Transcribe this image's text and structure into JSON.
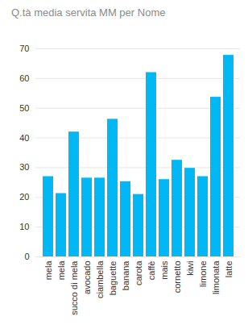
{
  "chart_data": {
    "type": "bar",
    "title": "Q.tà media servita MM per Nome",
    "categories": [
      "mela",
      "mela",
      "succo di mela",
      "avocado",
      "ciambella",
      "baguette",
      "banana",
      "carota",
      "caffè",
      "mais",
      "cornetto",
      "kiwi",
      "limone",
      "limonata",
      "latte"
    ],
    "values": [
      27,
      21.3,
      42,
      26.5,
      26.5,
      46.3,
      25.3,
      21,
      62,
      26,
      32.5,
      29.8,
      27,
      53.7,
      67.8
    ],
    "color": "#01b8f5",
    "ylim": [
      0,
      70
    ],
    "yticks": [
      0,
      10,
      20,
      30,
      40,
      50,
      60,
      70
    ],
    "grid": true
  }
}
